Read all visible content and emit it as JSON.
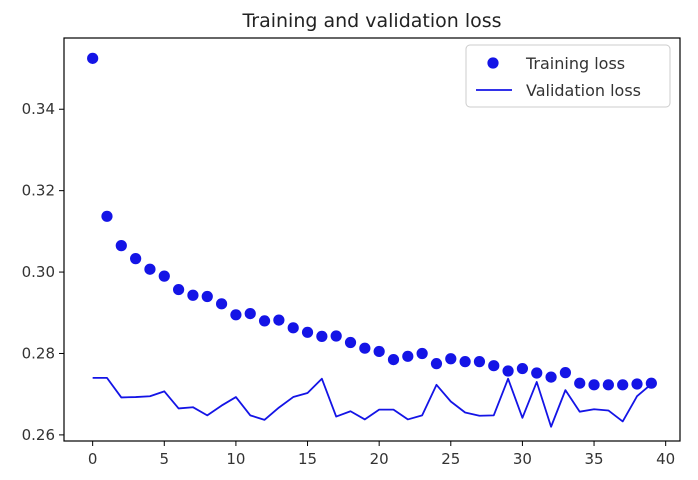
{
  "chart_data": {
    "type": "line",
    "title": "Training and validation loss",
    "xlabel": "",
    "ylabel": "",
    "xlim": [
      -2,
      41
    ],
    "ylim": [
      0.2585,
      0.3575
    ],
    "xticks": [
      0,
      5,
      10,
      15,
      20,
      25,
      30,
      35,
      40
    ],
    "yticks": [
      0.26,
      0.28,
      0.3,
      0.32,
      0.34
    ],
    "ytick_labels": [
      "0.26",
      "0.28",
      "0.30",
      "0.32",
      "0.34"
    ],
    "grid": false,
    "legend_position": "top-right",
    "series": [
      {
        "name": "Training loss",
        "style": "points",
        "color": "#1414e6",
        "x": [
          0,
          1,
          2,
          3,
          4,
          5,
          6,
          7,
          8,
          9,
          10,
          11,
          12,
          13,
          14,
          15,
          16,
          17,
          18,
          19,
          20,
          21,
          22,
          23,
          24,
          25,
          26,
          27,
          28,
          29,
          30,
          31,
          32,
          33,
          34,
          35,
          36,
          37,
          38,
          39
        ],
        "y": [
          0.3525,
          0.3137,
          0.3065,
          0.3033,
          0.3007,
          0.299,
          0.2957,
          0.2943,
          0.294,
          0.2922,
          0.2895,
          0.2898,
          0.288,
          0.2882,
          0.2863,
          0.2852,
          0.2842,
          0.2843,
          0.2827,
          0.2813,
          0.2805,
          0.2785,
          0.2793,
          0.28,
          0.2775,
          0.2787,
          0.278,
          0.278,
          0.277,
          0.2757,
          0.2763,
          0.2752,
          0.2742,
          0.2753,
          0.2727,
          0.2723,
          0.2723,
          0.2723,
          0.2725,
          0.2727
        ]
      },
      {
        "name": "Validation loss",
        "style": "line",
        "color": "#1414e6",
        "x": [
          0,
          1,
          2,
          3,
          4,
          5,
          6,
          7,
          8,
          9,
          10,
          11,
          12,
          13,
          14,
          15,
          16,
          17,
          18,
          19,
          20,
          21,
          22,
          23,
          24,
          25,
          26,
          27,
          28,
          29,
          30,
          31,
          32,
          33,
          34,
          35,
          36,
          37,
          38,
          39
        ],
        "y": [
          0.274,
          0.274,
          0.2692,
          0.2693,
          0.2695,
          0.2707,
          0.2665,
          0.2668,
          0.2648,
          0.2672,
          0.2693,
          0.2648,
          0.2637,
          0.2667,
          0.2693,
          0.2703,
          0.2738,
          0.2645,
          0.2658,
          0.2638,
          0.2662,
          0.2662,
          0.2638,
          0.2648,
          0.2723,
          0.2682,
          0.2655,
          0.2647,
          0.2648,
          0.2738,
          0.2642,
          0.273,
          0.262,
          0.271,
          0.2657,
          0.2663,
          0.266,
          0.2633,
          0.2695,
          0.2725
        ]
      }
    ]
  }
}
